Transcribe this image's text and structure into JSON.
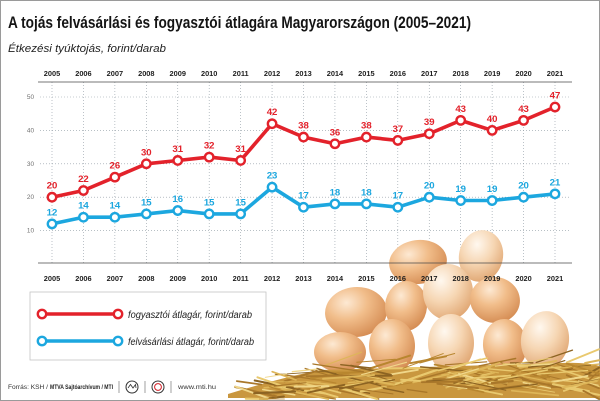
{
  "chart_data": {
    "type": "line",
    "title": "A tojás felvásárlási és fogyasztói átlagára Magyarországon (2005–2021)",
    "subtitle": "Étkezési tyúktojás, forint/darab",
    "x": [
      2005,
      2006,
      2007,
      2008,
      2009,
      2010,
      2011,
      2012,
      2013,
      2014,
      2015,
      2016,
      2017,
      2018,
      2019,
      2020,
      2021
    ],
    "yticks": [
      10,
      20,
      30,
      40,
      50
    ],
    "ylim": [
      0,
      50
    ],
    "grid": true,
    "legend_position": "bottom-left",
    "series": [
      {
        "name": "fogyasztói átlagár, forint/darab",
        "color": "#e3222b",
        "values": [
          20,
          22,
          26,
          30,
          31,
          32,
          31,
          42,
          38,
          36,
          38,
          37,
          39,
          43,
          40,
          43,
          47
        ]
      },
      {
        "name": "felvásárlási átlagár, forint/darab",
        "color": "#1ca7df",
        "values": [
          12,
          14,
          14,
          15,
          16,
          15,
          15,
          23,
          17,
          18,
          18,
          17,
          20,
          19,
          19,
          20,
          21
        ]
      }
    ]
  },
  "footer": {
    "source_label": "Forrás: KSH /",
    "source_agency": "MTVA Sajtóarchívum / MTI",
    "website": "www.mti.hu"
  }
}
